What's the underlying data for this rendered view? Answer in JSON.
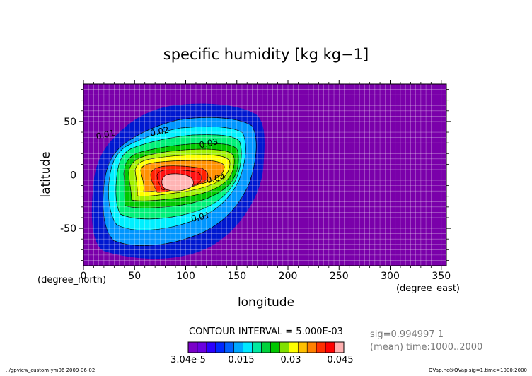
{
  "chart_data": {
    "type": "contour",
    "title": "specific humidity [kg kg−1]",
    "xlabel": "longitude",
    "ylabel": "latitude",
    "x_unit": "(degree_east)",
    "y_unit": "(degree_north)",
    "xlim": [
      0,
      355
    ],
    "ylim": [
      -85,
      85
    ],
    "x_ticks": [
      0,
      50,
      100,
      150,
      200,
      250,
      300,
      350
    ],
    "y_ticks": [
      50,
      0,
      -50
    ],
    "contour_interval_text": "CONTOUR INTERVAL = 5.000E-03",
    "contour_levels": [
      0.005,
      0.01,
      0.015,
      0.02,
      0.025,
      0.03,
      0.035,
      0.04,
      0.045,
      0.05
    ],
    "contour_labels": [
      {
        "text": "0.01",
        "lon": 22,
        "lat": 35
      },
      {
        "text": "0.02",
        "lon": 75,
        "lat": 38
      },
      {
        "text": "0.03",
        "lon": 123,
        "lat": 27
      },
      {
        "text": "0.04",
        "lon": 130,
        "lat": -6
      },
      {
        "text": "0.01",
        "lon": 115,
        "lat": -42
      }
    ],
    "field_min": 3.04e-05,
    "max_center": {
      "lon": 95,
      "lat": -8
    },
    "colorbar": {
      "colors": [
        "#7a00c8",
        "#6a00e0",
        "#2b00ff",
        "#0028ff",
        "#0060ff",
        "#00a8ff",
        "#00e8ff",
        "#00e8a0",
        "#00d23c",
        "#00c800",
        "#80e000",
        "#ffff00",
        "#ffc000",
        "#ff8000",
        "#ff3000",
        "#ff0000",
        "#ffb0b0"
      ],
      "tick_labels": [
        "3.04e-5",
        "0.015",
        "0.03",
        "0.045"
      ]
    },
    "grid": true,
    "colors": {
      "background_field": "#7a00aa",
      "levels": [
        "#0018d0",
        "#0096ff",
        "#00f0ff",
        "#00f078",
        "#00c800",
        "#a0f000",
        "#ffff00",
        "#ff9000",
        "#ff2000",
        "#ff1010",
        "#ffb4b4"
      ]
    }
  },
  "info": {
    "sig": "sig=0.994997 1",
    "mean_time": "(mean) time:1000..2000",
    "footer_left": "../gpview_custom-ym06  2009-06-02",
    "footer_right": "QVap.nc@QVap,sig=1,time=1000:2000"
  }
}
